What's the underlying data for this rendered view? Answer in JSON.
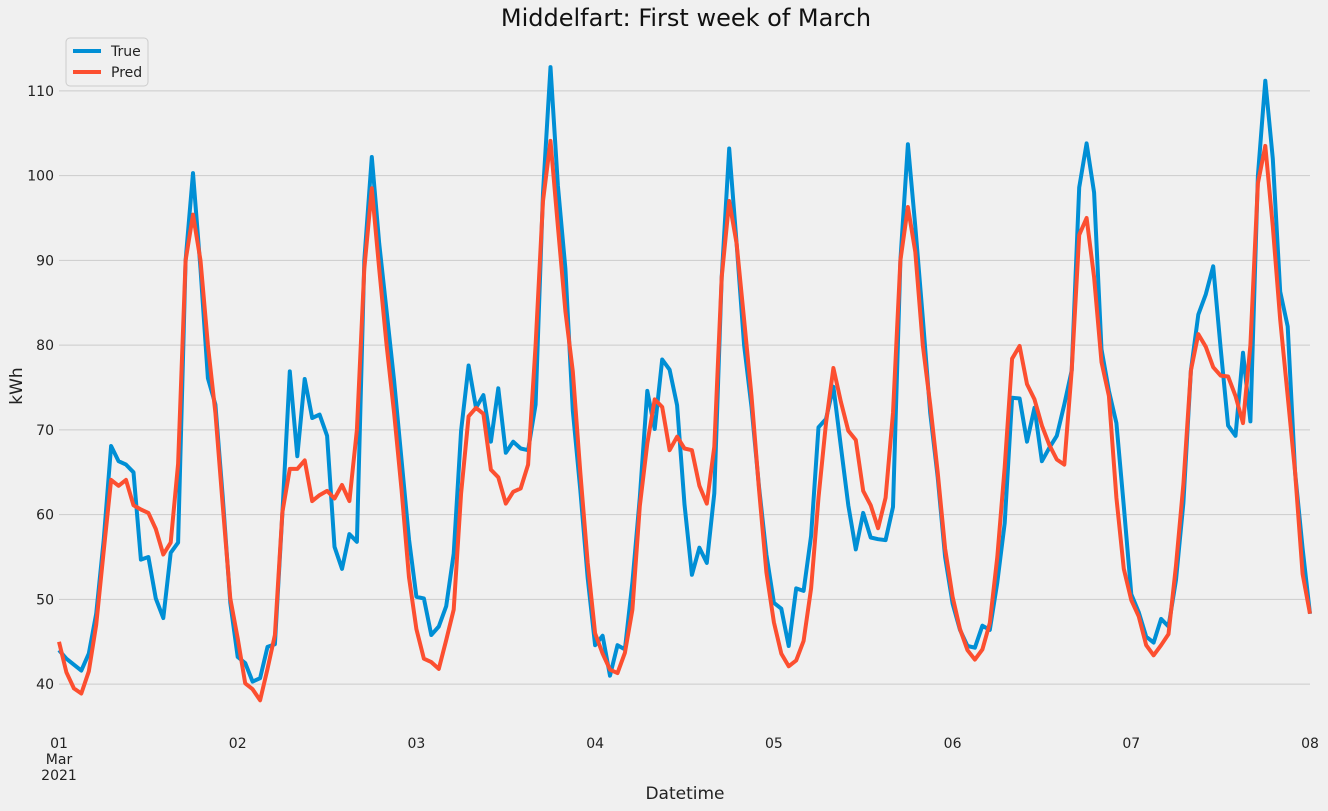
{
  "chart_data": {
    "type": "line",
    "title": "Middelfart: First week of March",
    "xlabel": "Datetime",
    "ylabel": "kWh",
    "ylim": [
      34,
      116
    ],
    "y_ticks": [
      40,
      50,
      60,
      70,
      80,
      90,
      100,
      110
    ],
    "x_range_days": [
      0,
      7
    ],
    "x_ticks": [
      {
        "label": "01",
        "sub": [
          "Mar",
          "2021"
        ],
        "day": 0
      },
      {
        "label": "02",
        "sub": [],
        "day": 1
      },
      {
        "label": "03",
        "sub": [],
        "day": 2
      },
      {
        "label": "04",
        "sub": [],
        "day": 3
      },
      {
        "label": "05",
        "sub": [],
        "day": 4
      },
      {
        "label": "06",
        "sub": [],
        "day": 5
      },
      {
        "label": "07",
        "sub": [],
        "day": 6
      },
      {
        "label": "08",
        "sub": [],
        "day": 7
      }
    ],
    "grid": "horizontal",
    "legend_position": "top-left",
    "x_start": "2021-03-01 00:00",
    "x_interval": "1h",
    "series": [
      {
        "name": "True",
        "color": "#008fd5",
        "values": [
          44,
          43,
          42.3,
          41.6,
          43.6,
          48.3,
          57,
          68.1,
          66.3,
          65.9,
          65,
          54.7,
          55,
          50.1,
          47.8,
          55.5,
          56.7,
          90,
          100.3,
          89,
          76.1,
          73,
          62,
          49.6,
          43.2,
          42.5,
          40.3,
          40.7,
          44.4,
          44.7,
          60.2,
          76.9,
          66.9,
          76,
          71.4,
          71.8,
          69.3,
          56.2,
          53.6,
          57.7,
          56.8,
          90,
          102.2,
          92,
          84,
          75.8,
          66.5,
          57.1,
          50.3,
          50.1,
          45.8,
          46.8,
          49.2,
          55.4,
          69.9,
          77.6,
          72.6,
          74.1,
          68.6,
          74.9,
          67.3,
          68.6,
          67.8,
          67.6,
          73,
          98,
          112.8,
          98.8,
          89,
          72.3,
          62.9,
          52.5,
          44.6,
          45.7,
          41,
          44.6,
          44.1,
          52,
          62,
          74.6,
          70.1,
          78.3,
          77.1,
          72.9,
          61.2,
          52.9,
          56.1,
          54.3,
          62.5,
          88,
          103.2,
          92,
          80,
          72.7,
          63.3,
          55.3,
          49.6,
          48.9,
          44.5,
          51.3,
          51,
          57.5,
          70.3,
          71.3,
          75.1,
          68,
          61.1,
          55.9,
          60.2,
          57.3,
          57.1,
          57,
          60.9,
          90,
          103.7,
          94,
          83.2,
          72,
          64.4,
          55,
          49.5,
          46.4,
          44.5,
          44.3,
          46.9,
          46.4,
          52,
          59,
          73.8,
          73.7,
          68.6,
          72.6,
          66.3,
          67.9,
          69.3,
          73,
          77,
          98.6,
          103.8,
          98,
          79.5,
          74.6,
          70.8,
          61,
          50.6,
          48.5,
          45.6,
          44.9,
          47.7,
          46.8,
          52.3,
          61.4,
          77,
          83.6,
          86,
          89.3,
          79.7,
          70.5,
          69.3,
          79.1,
          71,
          100,
          111.2,
          102,
          86.3,
          82.2,
          65,
          56,
          48.3
        ]
      },
      {
        "name": "Pred",
        "color": "#fc4f30",
        "values": [
          45,
          41.4,
          39.5,
          38.9,
          41.5,
          47,
          55.7,
          64.1,
          63.4,
          64.1,
          61.1,
          60.6,
          60.2,
          58.3,
          55.3,
          56.7,
          66,
          90,
          95.4,
          90,
          80,
          72,
          61,
          50.1,
          45.4,
          40.1,
          39.4,
          38.1,
          41.8,
          45.8,
          60.3,
          65.4,
          65.4,
          66.4,
          61.6,
          62.3,
          62.8,
          61.9,
          63.5,
          61.6,
          70,
          89,
          98.5,
          89,
          80,
          72,
          63,
          52.6,
          46.5,
          43,
          42.6,
          41.8,
          45.2,
          48.8,
          62.5,
          71.6,
          72.6,
          71.9,
          65.3,
          64.4,
          61.3,
          62.7,
          63.1,
          65.9,
          80,
          97,
          104.1,
          94,
          84,
          76.9,
          65,
          54.3,
          46,
          43.6,
          41.7,
          41.3,
          43.7,
          48.8,
          61,
          68.4,
          73.6,
          72.7,
          67.6,
          69.2,
          67.8,
          67.6,
          63.4,
          61.3,
          68,
          88,
          97,
          92,
          83,
          74,
          63,
          53.2,
          47.3,
          43.6,
          42.1,
          42.8,
          45.1,
          51.3,
          62,
          70.8,
          77.3,
          73.3,
          69.9,
          68.8,
          62.8,
          61.1,
          58.4,
          62,
          72,
          90,
          96.3,
          91,
          80,
          73,
          65,
          56,
          50.3,
          46.5,
          44,
          42.9,
          44.1,
          47.2,
          55,
          65.6,
          78.4,
          79.9,
          75.4,
          73.6,
          70.5,
          68.2,
          66.5,
          65.9,
          77,
          93,
          95,
          88,
          78,
          74,
          62,
          53.6,
          49.9,
          48,
          44.6,
          43.4,
          44.6,
          45.9,
          54,
          63.6,
          77,
          81.3,
          79.8,
          77.4,
          76.4,
          76.3,
          74,
          70.8,
          80,
          99.1,
          103.5,
          94,
          83,
          74,
          65,
          53,
          48.3
        ]
      }
    ]
  }
}
